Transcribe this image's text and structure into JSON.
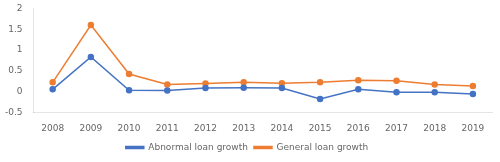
{
  "chart_data": {
    "type": "line",
    "x": [
      2008,
      2009,
      2010,
      2011,
      2012,
      2013,
      2014,
      2015,
      2016,
      2017,
      2018,
      2019
    ],
    "series": [
      {
        "name": "Abnormal loan growth",
        "color": "#4472c4",
        "marker": "circle",
        "values": [
          0.05,
          0.83,
          0.03,
          0.02,
          0.08,
          0.09,
          0.08,
          -0.18,
          0.05,
          -0.02,
          -0.02,
          -0.06
        ]
      },
      {
        "name": "General loan growth",
        "color": "#ed7d31",
        "marker": "circle",
        "values": [
          0.22,
          1.6,
          0.42,
          0.17,
          0.19,
          0.22,
          0.2,
          0.22,
          0.27,
          0.26,
          0.17,
          0.13
        ]
      }
    ],
    "xlim": [
      2007.5,
      2019.5
    ],
    "xticks": [
      2008,
      2009,
      2010,
      2011,
      2012,
      2013,
      2014,
      2015,
      2016,
      2017,
      2018,
      2019
    ],
    "ylim": [
      -0.5,
      2.0
    ],
    "yticks": [
      -0.5,
      0,
      0.5,
      1,
      1.5,
      2
    ],
    "grid": false,
    "legend": "bottom"
  }
}
